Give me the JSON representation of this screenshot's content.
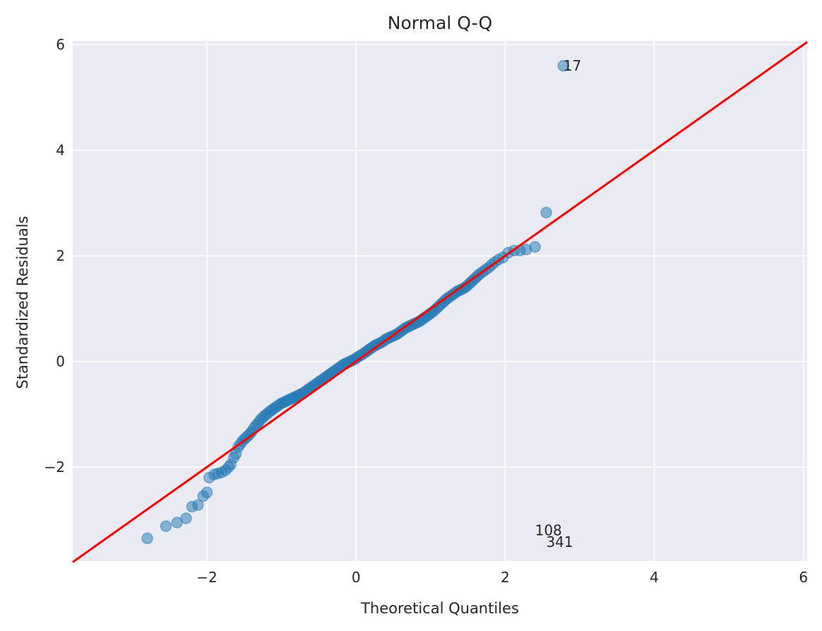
{
  "chart_data": {
    "type": "scatter",
    "title": "Normal Q-Q",
    "xlabel": "Theoretical Quantiles",
    "ylabel": "Standardized Residuals",
    "xlim": [
      -3.8,
      6.05
    ],
    "ylim": [
      -3.78,
      6.07
    ],
    "xticks": [
      -2,
      0,
      2,
      4,
      6
    ],
    "yticks": [
      -2,
      0,
      2,
      4,
      6
    ],
    "xtick_labels": [
      "−2",
      "0",
      "2",
      "4",
      "6"
    ],
    "ytick_labels": [
      "−2",
      "0",
      "2",
      "4",
      "6"
    ],
    "grid": true,
    "colors": {
      "background": "#EAEAF2",
      "grid": "#FFFFFF",
      "points": "#1F77B4",
      "reference_line": "#FF0000",
      "text": "#262626"
    },
    "reference_line": {
      "x": [
        -3.8,
        6.05
      ],
      "y": [
        -3.8,
        6.05
      ]
    },
    "points": {
      "x": [
        -2.8,
        -2.55,
        -2.4,
        -2.28,
        -2.2,
        -2.12,
        -2.05,
        -2.0,
        -1.97,
        -1.9,
        -1.85,
        -1.8,
        -1.75,
        -1.71,
        -1.68,
        -1.64,
        -1.61,
        -1.58,
        -1.55,
        -1.52,
        -1.49,
        -1.46,
        -1.43,
        -1.4,
        -1.37,
        -1.34,
        -1.31,
        -1.28,
        -1.25,
        -1.22,
        -1.19,
        -1.16,
        -1.13,
        -1.1,
        -1.07,
        -1.04,
        -1.01,
        -0.98,
        -0.95,
        -0.92,
        -0.89,
        -0.86,
        -0.83,
        -0.8,
        -0.77,
        -0.74,
        -0.71,
        -0.68,
        -0.65,
        -0.62,
        -0.59,
        -0.56,
        -0.53,
        -0.5,
        -0.47,
        -0.44,
        -0.41,
        -0.38,
        -0.35,
        -0.32,
        -0.29,
        -0.26,
        -0.23,
        -0.2,
        -0.17,
        -0.14,
        -0.11,
        -0.08,
        -0.05,
        -0.02,
        0.01,
        0.04,
        0.07,
        0.1,
        0.13,
        0.16,
        0.19,
        0.22,
        0.25,
        0.28,
        0.31,
        0.34,
        0.37,
        0.4,
        0.43,
        0.46,
        0.49,
        0.52,
        0.55,
        0.58,
        0.61,
        0.64,
        0.67,
        0.7,
        0.73,
        0.76,
        0.79,
        0.82,
        0.85,
        0.88,
        0.91,
        0.94,
        0.97,
        1.0,
        1.03,
        1.06,
        1.09,
        1.12,
        1.15,
        1.18,
        1.21,
        1.24,
        1.27,
        1.3,
        1.33,
        1.36,
        1.39,
        1.42,
        1.45,
        1.48,
        1.51,
        1.54,
        1.57,
        1.6,
        1.63,
        1.66,
        1.7,
        1.74,
        1.78,
        1.82,
        1.86,
        1.91,
        1.97,
        2.04,
        2.12,
        2.2,
        2.28,
        2.4,
        2.55,
        2.78
      ],
      "y": [
        -3.35,
        -3.12,
        -3.05,
        -2.97,
        -2.75,
        -2.72,
        -2.55,
        -2.48,
        -2.2,
        -2.14,
        -2.12,
        -2.1,
        -2.06,
        -2.0,
        -1.95,
        -1.82,
        -1.75,
        -1.62,
        -1.56,
        -1.5,
        -1.46,
        -1.42,
        -1.38,
        -1.33,
        -1.26,
        -1.21,
        -1.16,
        -1.1,
        -1.06,
        -1.02,
        -0.99,
        -0.95,
        -0.92,
        -0.89,
        -0.86,
        -0.83,
        -0.8,
        -0.78,
        -0.76,
        -0.74,
        -0.72,
        -0.7,
        -0.68,
        -0.66,
        -0.64,
        -0.62,
        -0.6,
        -0.57,
        -0.54,
        -0.51,
        -0.48,
        -0.45,
        -0.42,
        -0.39,
        -0.36,
        -0.33,
        -0.3,
        -0.27,
        -0.24,
        -0.21,
        -0.18,
        -0.15,
        -0.12,
        -0.09,
        -0.06,
        -0.04,
        -0.02,
        0.0,
        0.02,
        0.04,
        0.07,
        0.1,
        0.12,
        0.15,
        0.18,
        0.21,
        0.24,
        0.27,
        0.3,
        0.32,
        0.34,
        0.36,
        0.39,
        0.42,
        0.44,
        0.46,
        0.48,
        0.5,
        0.52,
        0.55,
        0.58,
        0.61,
        0.64,
        0.66,
        0.68,
        0.7,
        0.72,
        0.74,
        0.76,
        0.79,
        0.82,
        0.85,
        0.88,
        0.91,
        0.94,
        0.98,
        1.02,
        1.06,
        1.1,
        1.14,
        1.18,
        1.21,
        1.24,
        1.27,
        1.3,
        1.33,
        1.35,
        1.37,
        1.39,
        1.42,
        1.46,
        1.5,
        1.54,
        1.58,
        1.62,
        1.66,
        1.7,
        1.74,
        1.78,
        1.83,
        1.88,
        1.93,
        1.97,
        2.06,
        2.1,
        2.1,
        2.12,
        2.17,
        2.82,
        5.6
      ]
    },
    "annotations": [
      {
        "text": "17",
        "x": 2.78,
        "y": 5.6
      },
      {
        "text": "108",
        "x": 2.4,
        "y": -3.2
      },
      {
        "text": "341",
        "x": 2.55,
        "y": -3.42
      }
    ]
  }
}
